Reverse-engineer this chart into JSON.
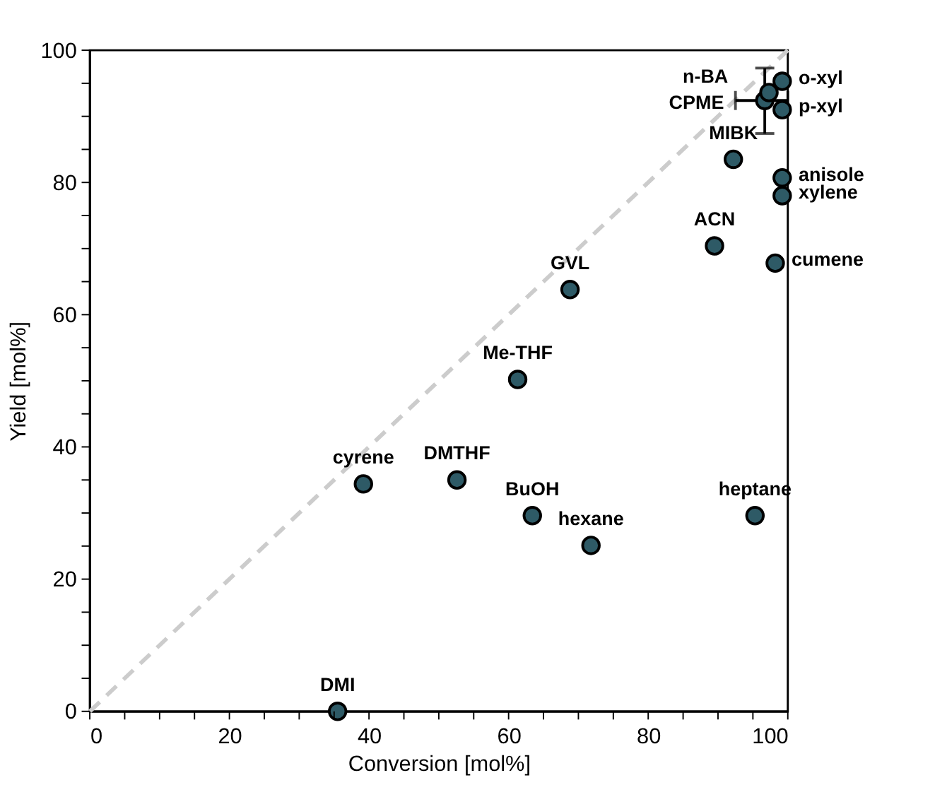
{
  "chart_data": {
    "type": "scatter",
    "xlabel": "Conversion [mol%]",
    "ylabel": "Yield [mol%]",
    "xlim": [
      0,
      100
    ],
    "ylim": [
      0,
      100
    ],
    "xticks": [
      0,
      {
        "value": 5,
        "label": null
      },
      {
        "value": 10,
        "label": null
      },
      {
        "value": 15,
        "label": null
      },
      20,
      {
        "value": 25,
        "label": null
      },
      {
        "value": 30,
        "label": null
      },
      {
        "value": 35,
        "label": null
      },
      40,
      {
        "value": 45,
        "label": null
      },
      {
        "value": 50,
        "label": null
      },
      {
        "value": 55,
        "label": null
      },
      60,
      {
        "value": 65,
        "label": null
      },
      {
        "value": 70,
        "label": null
      },
      {
        "value": 75,
        "label": null
      },
      80,
      {
        "value": 85,
        "label": null
      },
      {
        "value": 90,
        "label": null
      },
      {
        "value": 95,
        "label": null
      },
      100
    ],
    "yticks": [
      0,
      {
        "value": 5,
        "label": null
      },
      {
        "value": 10,
        "label": null
      },
      {
        "value": 15,
        "label": null
      },
      20,
      {
        "value": 25,
        "label": null
      },
      {
        "value": 30,
        "label": null
      },
      {
        "value": 35,
        "label": null
      },
      40,
      {
        "value": 45,
        "label": null
      },
      {
        "value": 50,
        "label": null
      },
      {
        "value": 55,
        "label": null
      },
      60,
      {
        "value": 65,
        "label": null
      },
      {
        "value": 70,
        "label": null
      },
      {
        "value": 75,
        "label": null
      },
      80,
      {
        "value": 85,
        "label": null
      },
      {
        "value": 90,
        "label": null
      },
      {
        "value": 95,
        "label": null
      },
      100
    ],
    "series": [
      {
        "type": "line",
        "color": "#cccccc",
        "line_style": "dashed",
        "marker": "none",
        "x": [
          0,
          100
        ],
        "values": [
          0,
          100
        ]
      },
      {
        "color": "#2e5a66",
        "marker": "circle",
        "x": [
          35.5,
          39.2,
          52.6,
          63.4,
          71.8,
          95.3,
          61.3,
          68.8,
          89.5,
          98.2,
          92.2,
          99.2,
          99.2,
          99.2,
          99.2,
          96.7,
          97.3
        ],
        "values": [
          0,
          34.4,
          35,
          29.6,
          25.1,
          29.6,
          50.2,
          63.8,
          70.4,
          67.8,
          83.5,
          80.7,
          78,
          95.3,
          91,
          92.4,
          93.6
        ],
        "errors": [
          null,
          null,
          null,
          null,
          null,
          null,
          null,
          null,
          null,
          null,
          null,
          null,
          null,
          null,
          null,
          [
            87.4,
            97.3
          ],
          null
        ],
        "xerrors": [
          null,
          null,
          null,
          null,
          null,
          null,
          null,
          null,
          null,
          null,
          null,
          null,
          null,
          null,
          null,
          [
            92.5,
            100
          ],
          null
        ]
      }
    ],
    "annotations": [
      {
        "text": "DMI",
        "x": 35.5,
        "y": 0
      },
      {
        "text": "cyrene",
        "x": 39.2,
        "y": 34.4
      },
      {
        "text": "DMTHF",
        "x": 52.6,
        "y": 35
      },
      {
        "text": "BuOH",
        "x": 63.4,
        "y": 29.6
      },
      {
        "text": "hexane",
        "x": 71.8,
        "y": 25.1
      },
      {
        "text": "heptane",
        "x": 95.3,
        "y": 29.6
      },
      {
        "text": "Me-THF",
        "x": 61.3,
        "y": 50.2
      },
      {
        "text": "GVL",
        "x": 68.8,
        "y": 63.8
      },
      {
        "text": "ACN",
        "x": 89.5,
        "y": 70.4
      },
      {
        "text": "cumene",
        "x": 98.2,
        "y": 67.8
      },
      {
        "text": "MIBK",
        "x": 92.2,
        "y": 83.5
      },
      {
        "text": "anisole",
        "x": 99.2,
        "y": 80.7
      },
      {
        "text": "xylene",
        "x": 99.2,
        "y": 78
      },
      {
        "text": "o-xyl",
        "x": 99.2,
        "y": 95.3
      },
      {
        "text": "p-xyl",
        "x": 99.2,
        "y": 91
      },
      {
        "text": "CPME",
        "x": 96.7,
        "y": 92.4
      },
      {
        "text": "n-BA",
        "x": 97.3,
        "y": 93.6
      }
    ]
  }
}
